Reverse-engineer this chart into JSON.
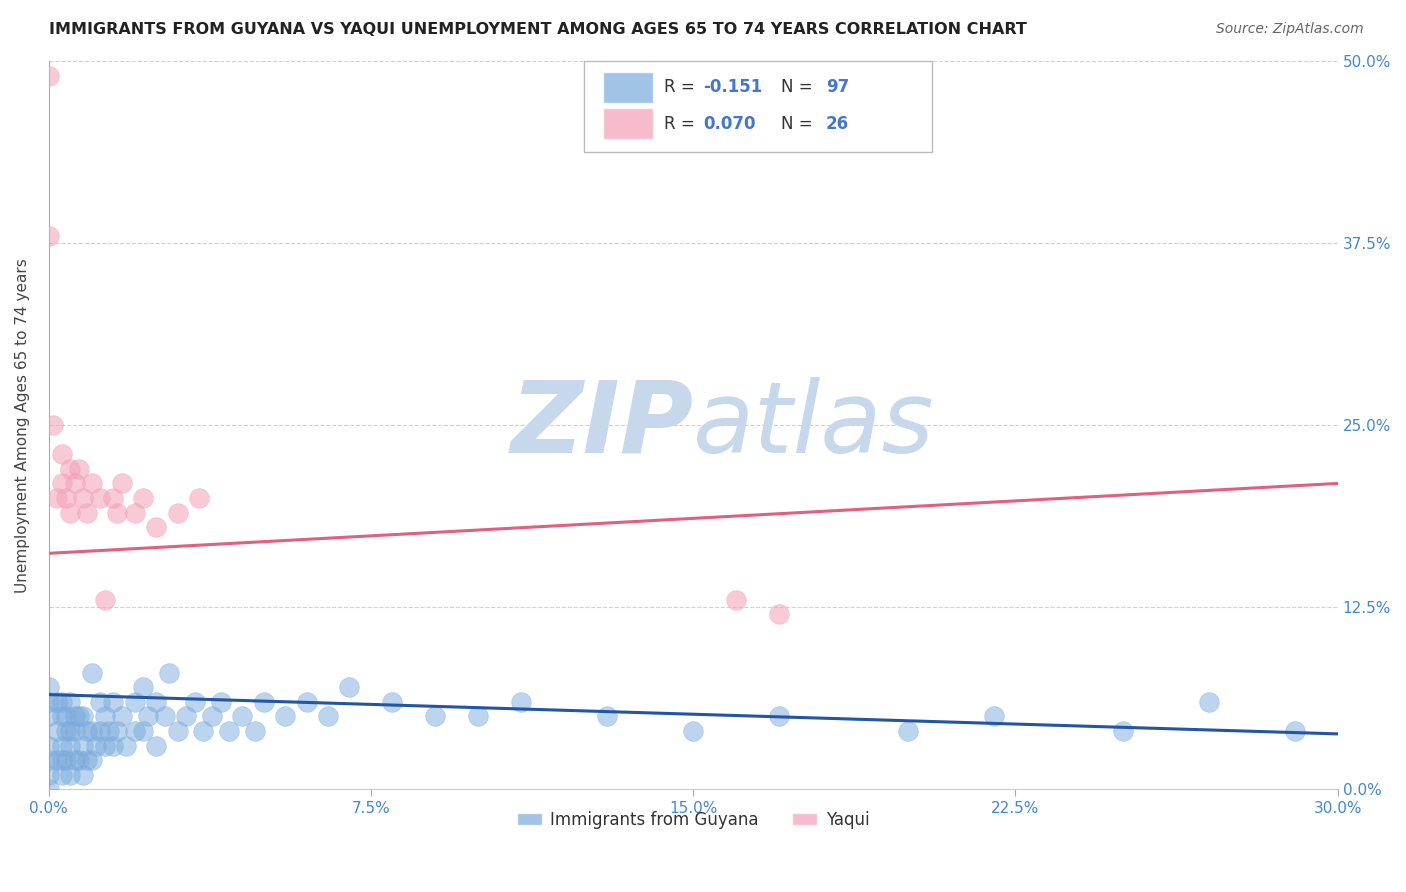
{
  "title": "IMMIGRANTS FROM GUYANA VS YAQUI UNEMPLOYMENT AMONG AGES 65 TO 74 YEARS CORRELATION CHART",
  "source": "Source: ZipAtlas.com",
  "ylabel": "Unemployment Among Ages 65 to 74 years",
  "xlim": [
    0.0,
    0.3
  ],
  "ylim": [
    0.0,
    0.5
  ],
  "legend1_label": "Immigrants from Guyana",
  "legend2_label": "Yaqui",
  "r1": -0.151,
  "n1": 97,
  "r2": 0.07,
  "n2": 26,
  "blue_color": "#7aabdc",
  "pink_color": "#f4a0b5",
  "blue_line_color": "#2255a4",
  "pink_line_color": "#e0607e",
  "legend_text_color": "#4477cc",
  "watermark_color": "#c8d8ec",
  "background_color": "#ffffff",
  "grid_color": "#cccccc",
  "title_color": "#222222",
  "axis_tick_color": "#4488cc",
  "blue_scatter_x": [
    0.0,
    0.0,
    0.0,
    0.0,
    0.0,
    0.0,
    0.0,
    0.002,
    0.002,
    0.002,
    0.003,
    0.003,
    0.003,
    0.003,
    0.003,
    0.004,
    0.004,
    0.004,
    0.005,
    0.005,
    0.005,
    0.005,
    0.006,
    0.006,
    0.006,
    0.007,
    0.007,
    0.008,
    0.008,
    0.008,
    0.009,
    0.009,
    0.01,
    0.01,
    0.01,
    0.011,
    0.012,
    0.012,
    0.013,
    0.013,
    0.014,
    0.015,
    0.015,
    0.016,
    0.017,
    0.018,
    0.02,
    0.02,
    0.022,
    0.022,
    0.023,
    0.025,
    0.025,
    0.027,
    0.028,
    0.03,
    0.032,
    0.034,
    0.036,
    0.038,
    0.04,
    0.042,
    0.045,
    0.048,
    0.05,
    0.055,
    0.06,
    0.065,
    0.07,
    0.08,
    0.09,
    0.1,
    0.11,
    0.13,
    0.15,
    0.17,
    0.2,
    0.22,
    0.25,
    0.27,
    0.29
  ],
  "blue_scatter_y": [
    0.0,
    0.01,
    0.02,
    0.03,
    0.05,
    0.06,
    0.07,
    0.02,
    0.04,
    0.06,
    0.01,
    0.02,
    0.03,
    0.05,
    0.06,
    0.02,
    0.04,
    0.05,
    0.01,
    0.03,
    0.04,
    0.06,
    0.02,
    0.04,
    0.05,
    0.02,
    0.05,
    0.01,
    0.03,
    0.05,
    0.02,
    0.04,
    0.02,
    0.04,
    0.08,
    0.03,
    0.04,
    0.06,
    0.03,
    0.05,
    0.04,
    0.03,
    0.06,
    0.04,
    0.05,
    0.03,
    0.04,
    0.06,
    0.04,
    0.07,
    0.05,
    0.03,
    0.06,
    0.05,
    0.08,
    0.04,
    0.05,
    0.06,
    0.04,
    0.05,
    0.06,
    0.04,
    0.05,
    0.04,
    0.06,
    0.05,
    0.06,
    0.05,
    0.07,
    0.06,
    0.05,
    0.05,
    0.06,
    0.05,
    0.04,
    0.05,
    0.04,
    0.05,
    0.04,
    0.06,
    0.04
  ],
  "pink_scatter_x": [
    0.0,
    0.0,
    0.001,
    0.002,
    0.003,
    0.003,
    0.004,
    0.005,
    0.005,
    0.006,
    0.007,
    0.008,
    0.009,
    0.01,
    0.012,
    0.013,
    0.015,
    0.016,
    0.017,
    0.02,
    0.022,
    0.025,
    0.03,
    0.035,
    0.16,
    0.17
  ],
  "pink_scatter_y": [
    0.49,
    0.38,
    0.25,
    0.2,
    0.23,
    0.21,
    0.2,
    0.19,
    0.22,
    0.21,
    0.22,
    0.2,
    0.19,
    0.21,
    0.2,
    0.13,
    0.2,
    0.19,
    0.21,
    0.19,
    0.2,
    0.18,
    0.19,
    0.2,
    0.13,
    0.12
  ],
  "blue_line_x": [
    0.0,
    0.3
  ],
  "blue_line_y": [
    0.065,
    0.038
  ],
  "pink_line_x": [
    0.0,
    0.3
  ],
  "pink_line_y": [
    0.162,
    0.21
  ]
}
